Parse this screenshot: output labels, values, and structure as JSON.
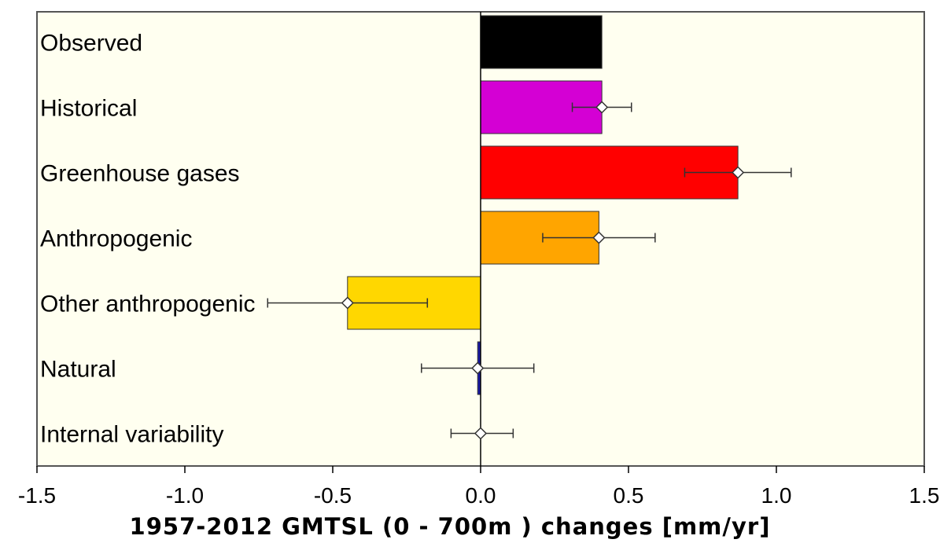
{
  "chart_data": {
    "type": "bar",
    "orientation": "horizontal",
    "xlabel": "1957-2012 GMTSL (0 - 700m ) changes [mm/yr]",
    "xlim": [
      -1.5,
      1.5
    ],
    "xticks": [
      "-1.5",
      "-1.0",
      "-0.5",
      "0.0",
      "0.5",
      "1.0",
      "1.5"
    ],
    "grid": false,
    "categories": [
      "Observed",
      "Historical",
      "Greenhouse gases",
      "Anthropogenic",
      "Other anthropogenic",
      "Natural",
      "Internal variability"
    ],
    "values": [
      0.41,
      0.41,
      0.87,
      0.4,
      -0.45,
      -0.01,
      0.0
    ],
    "markers": [
      null,
      0.41,
      0.87,
      0.4,
      -0.45,
      -0.01,
      0.0
    ],
    "error_low": [
      null,
      0.31,
      0.69,
      0.21,
      -0.72,
      -0.2,
      -0.1
    ],
    "error_high": [
      null,
      0.51,
      1.05,
      0.59,
      -0.18,
      0.18,
      0.11
    ],
    "colors": [
      "#000000",
      "#d400d4",
      "#ff0000",
      "#ffa500",
      "#ffd700",
      "#1a1aa6",
      null
    ]
  }
}
